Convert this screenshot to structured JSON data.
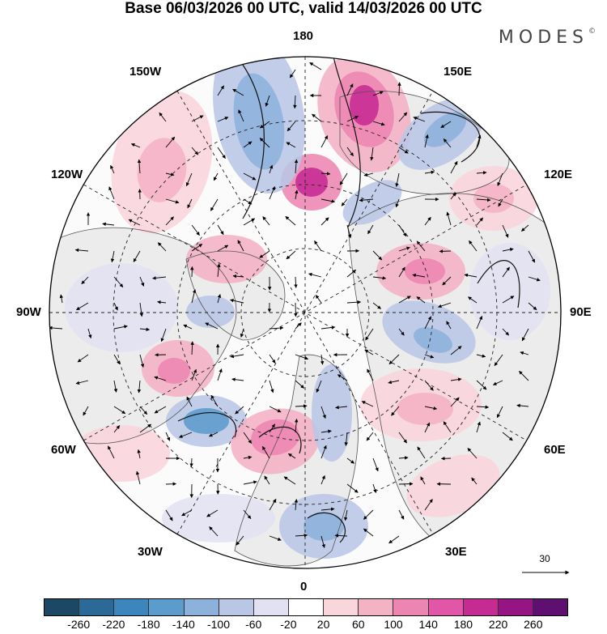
{
  "title": "Base 06/03/2026 00 UTC, valid 14/03/2026 00 UTC",
  "brand": "MODES",
  "brand_mark": "©",
  "longitude_labels": {
    "top": "180",
    "bottom": "0",
    "left": "90W",
    "right": "90E",
    "upper_left_1": "150W",
    "upper_left_2": "120W",
    "upper_right_1": "150E",
    "upper_right_2": "120E",
    "lower_left_1": "60W",
    "lower_left_2": "30W",
    "lower_right_1": "60E",
    "lower_right_2": "30E"
  },
  "reference_vector": {
    "value": "30"
  },
  "colorbar": {
    "colors": [
      "#1b4863",
      "#2b6a96",
      "#3d86bd",
      "#5c9ccc",
      "#8cb2dc",
      "#b9c6e6",
      "#e2e1f1",
      "#ffffff",
      "#f9d5dc",
      "#f4b2c5",
      "#ed85b2",
      "#e256a7",
      "#c62a93",
      "#951585",
      "#5e0f70"
    ],
    "tick_labels": [
      "-260",
      "-220",
      "-180",
      "-140",
      "-100",
      "-60",
      "-20",
      "20",
      "60",
      "100",
      "140",
      "180",
      "220",
      "260"
    ]
  },
  "map_colors": {
    "land": "#ececec",
    "positive_light": "#f9d5dc",
    "positive_mid": "#f4b2c5",
    "positive_strong": "#ed85b2",
    "positive_max": "#c62a93",
    "negative_light": "#e2e1f1",
    "negative_mid": "#b9c6e6",
    "negative_strong": "#8cb2dc",
    "negative_max": "#5c9ccc"
  }
}
